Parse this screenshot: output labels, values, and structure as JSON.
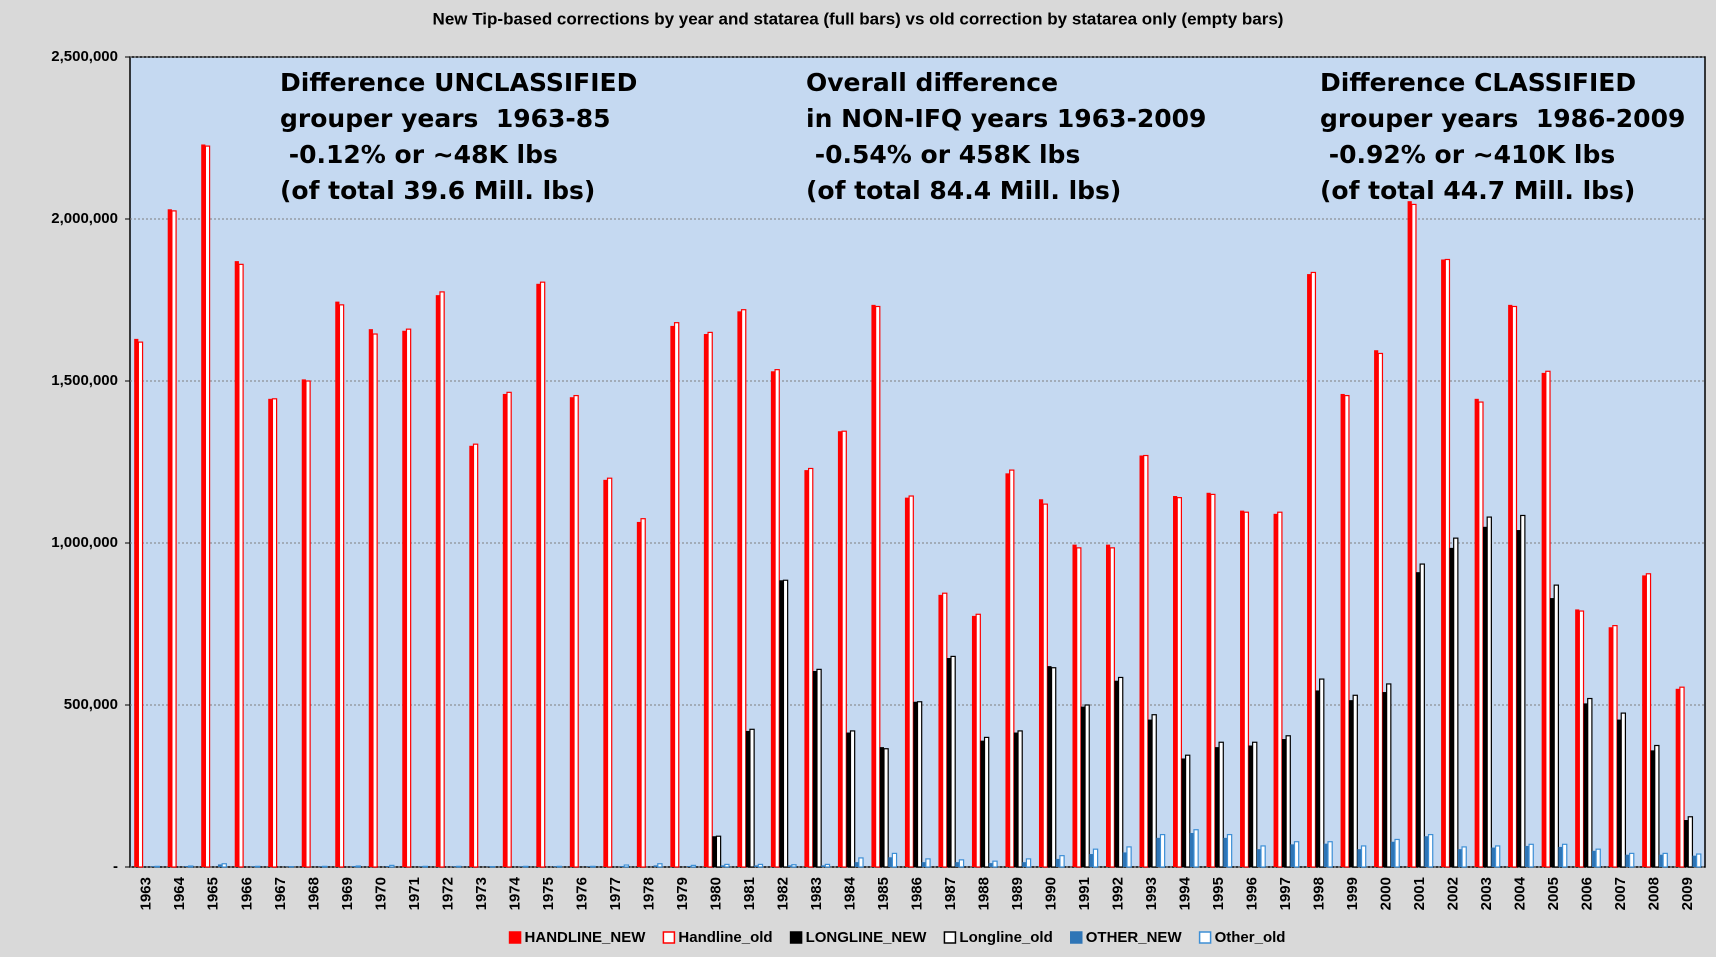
{
  "chart_data": {
    "type": "bar",
    "title": "New Tip-based corrections by year and statarea (full bars) vs old correction by statarea only (empty bars)",
    "annotations": [
      {
        "lines": [
          "Difference UNCLASSIFIED",
          "grouper years  1963-85",
          " -0.12% or ~48K lbs",
          "(of total 39.6 Mill. lbs)"
        ]
      },
      {
        "lines": [
          "Overall difference",
          "in NON-IFQ years 1963-2009",
          " -0.54% or 458K lbs",
          "(of total 84.4 Mill. lbs)"
        ]
      },
      {
        "lines": [
          "Difference CLASSIFIED",
          "grouper years  1986-2009",
          " -0.92% or ~410K lbs",
          "(of total 44.7 Mill. lbs)"
        ]
      }
    ],
    "categories": [
      "1963",
      "1964",
      "1965",
      "1966",
      "1967",
      "1968",
      "1969",
      "1970",
      "1971",
      "1972",
      "1973",
      "1974",
      "1975",
      "1976",
      "1977",
      "1978",
      "1979",
      "1980",
      "1981",
      "1982",
      "1983",
      "1984",
      "1985",
      "1986",
      "1987",
      "1988",
      "1989",
      "1990",
      "1991",
      "1992",
      "1993",
      "1994",
      "1995",
      "1996",
      "1997",
      "1998",
      "1999",
      "2000",
      "2001",
      "2002",
      "2003",
      "2004",
      "2005",
      "2006",
      "2007",
      "2008",
      "2009"
    ],
    "series": [
      {
        "name": "HANDLINE_NEW",
        "color": "#ff0000",
        "filled": true,
        "values": [
          1630000,
          2030000,
          2230000,
          1870000,
          1445000,
          1505000,
          1745000,
          1660000,
          1655000,
          1765000,
          1300000,
          1460000,
          1800000,
          1450000,
          1195000,
          1065000,
          1670000,
          1645000,
          1715000,
          1530000,
          1225000,
          1345000,
          1735000,
          1140000,
          840000,
          775000,
          1215000,
          1135000,
          995000,
          995000,
          1270000,
          1145000,
          1155000,
          1100000,
          1090000,
          1830000,
          1460000,
          1595000,
          2055000,
          1875000,
          1445000,
          1735000,
          1525000,
          795000,
          740000,
          900000,
          550000
        ]
      },
      {
        "name": "Handline_old",
        "color": "#ff0000",
        "filled": false,
        "values": [
          1620000,
          2025000,
          2225000,
          1860000,
          1445000,
          1500000,
          1735000,
          1645000,
          1660000,
          1775000,
          1305000,
          1465000,
          1805000,
          1455000,
          1200000,
          1075000,
          1680000,
          1650000,
          1720000,
          1535000,
          1230000,
          1345000,
          1730000,
          1145000,
          845000,
          780000,
          1225000,
          1120000,
          985000,
          985000,
          1270000,
          1140000,
          1150000,
          1095000,
          1095000,
          1835000,
          1455000,
          1585000,
          2045000,
          1875000,
          1435000,
          1730000,
          1530000,
          790000,
          745000,
          905000,
          555000
        ]
      },
      {
        "name": "LONGLINE_NEW",
        "color": "#000000",
        "filled": true,
        "values": [
          0,
          0,
          0,
          0,
          0,
          0,
          0,
          0,
          0,
          0,
          0,
          0,
          0,
          0,
          0,
          0,
          0,
          95000,
          420000,
          885000,
          605000,
          415000,
          370000,
          510000,
          645000,
          390000,
          415000,
          620000,
          495000,
          575000,
          455000,
          335000,
          370000,
          375000,
          395000,
          545000,
          515000,
          540000,
          910000,
          985000,
          1050000,
          1040000,
          830000,
          505000,
          455000,
          360000,
          145000
        ]
      },
      {
        "name": "Longline_old",
        "color": "#000000",
        "filled": false,
        "values": [
          0,
          0,
          0,
          0,
          0,
          0,
          0,
          0,
          0,
          0,
          0,
          0,
          0,
          0,
          0,
          0,
          0,
          95000,
          425000,
          885000,
          610000,
          420000,
          365000,
          510000,
          650000,
          400000,
          420000,
          615000,
          500000,
          585000,
          470000,
          345000,
          385000,
          385000,
          405000,
          580000,
          530000,
          565000,
          935000,
          1015000,
          1080000,
          1085000,
          870000,
          520000,
          475000,
          375000,
          155000
        ]
      },
      {
        "name": "OTHER_NEW",
        "color": "#2e75b6",
        "filled": true,
        "values": [
          2000,
          3000,
          8000,
          2000,
          1000,
          2000,
          3000,
          3000,
          2000,
          2000,
          1000,
          2000,
          2000,
          2000,
          3000,
          5000,
          3000,
          5000,
          5000,
          5000,
          5000,
          15000,
          30000,
          15000,
          15000,
          12000,
          15000,
          25000,
          40000,
          45000,
          90000,
          105000,
          90000,
          55000,
          70000,
          72000,
          55000,
          78000,
          95000,
          55000,
          60000,
          65000,
          62000,
          50000,
          38000,
          38000,
          35000
        ]
      },
      {
        "name": "Other_old",
        "color": "#3d8fd6",
        "filled": false,
        "values": [
          2000,
          3000,
          10000,
          2000,
          1000,
          2000,
          3000,
          5000,
          2000,
          2000,
          1000,
          2000,
          2000,
          2000,
          6000,
          10000,
          5000,
          8000,
          8000,
          7000,
          8000,
          28000,
          42000,
          25000,
          22000,
          18000,
          25000,
          35000,
          55000,
          62000,
          100000,
          115000,
          100000,
          65000,
          78000,
          78000,
          65000,
          85000,
          100000,
          62000,
          65000,
          70000,
          70000,
          55000,
          42000,
          42000,
          40000
        ]
      }
    ],
    "ylim": [
      0,
      2500000
    ],
    "yticks": [
      {
        "value": 0,
        "label": "-"
      },
      {
        "value": 500000,
        "label": "500,000"
      },
      {
        "value": 1000000,
        "label": "1,000,000"
      },
      {
        "value": 1500000,
        "label": "1,500,000"
      },
      {
        "value": 2000000,
        "label": "2,000,000"
      },
      {
        "value": 2500000,
        "label": "2,500,000"
      }
    ],
    "grid": true,
    "legend": "bottom"
  }
}
